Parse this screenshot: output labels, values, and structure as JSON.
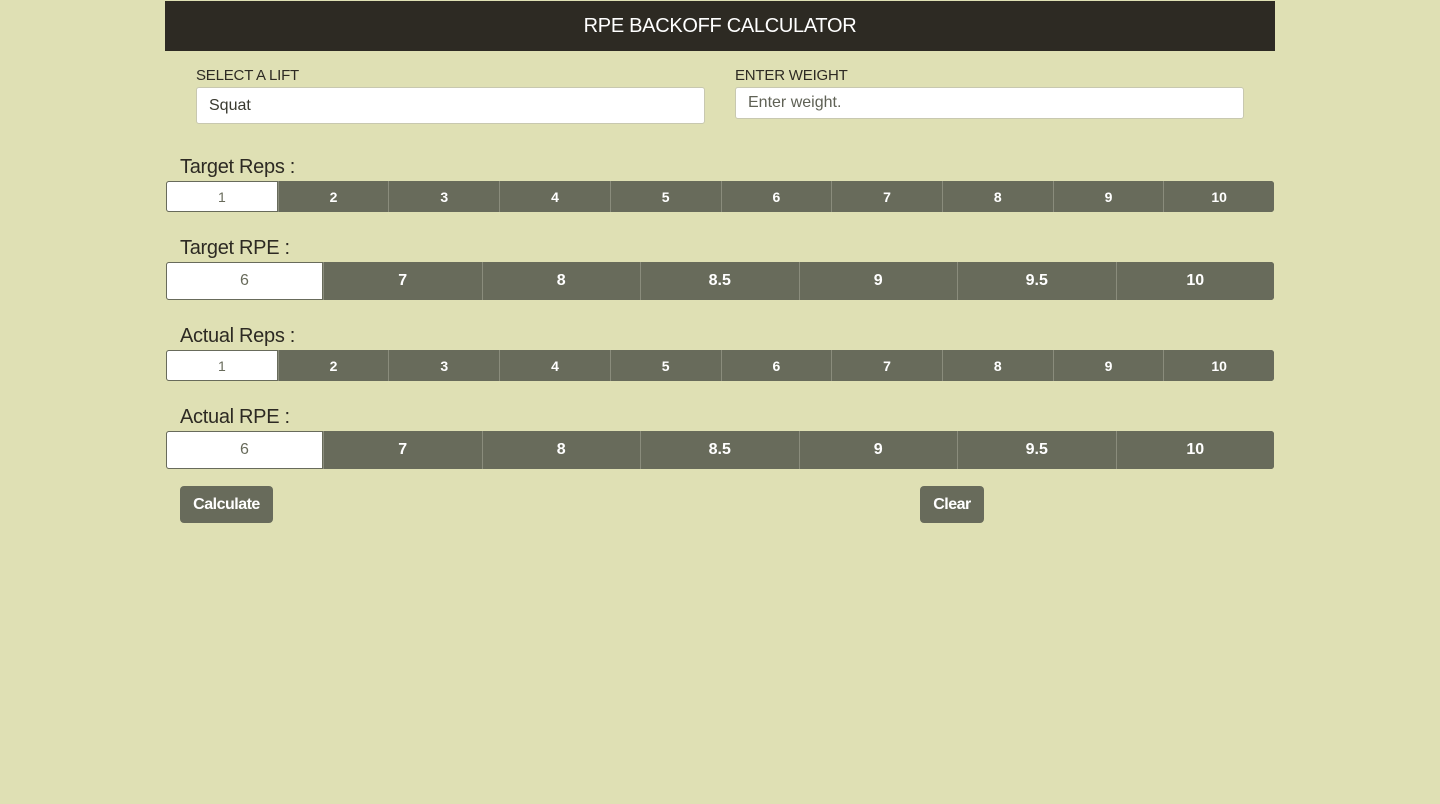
{
  "header": {
    "title": "RPE BACKOFF CALCULATOR"
  },
  "lift": {
    "label": "SELECT A LIFT",
    "value": "Squat"
  },
  "weight": {
    "label": "ENTER WEIGHT",
    "placeholder": "Enter weight."
  },
  "target_reps": {
    "label": "Target Reps :",
    "selected": "1",
    "options": [
      "1",
      "2",
      "3",
      "4",
      "5",
      "6",
      "7",
      "8",
      "9",
      "10"
    ]
  },
  "target_rpe": {
    "label": "Target RPE :",
    "selected": "6",
    "options": [
      "6",
      "7",
      "8",
      "8.5",
      "9",
      "9.5",
      "10"
    ]
  },
  "actual_reps": {
    "label": "Actual Reps :",
    "selected": "1",
    "options": [
      "1",
      "2",
      "3",
      "4",
      "5",
      "6",
      "7",
      "8",
      "9",
      "10"
    ]
  },
  "actual_rpe": {
    "label": "Actual RPE :",
    "selected": "6",
    "options": [
      "6",
      "7",
      "8",
      "8.5",
      "9",
      "9.5",
      "10"
    ]
  },
  "actions": {
    "calculate_label": "Calculate",
    "clear_label": "Clear"
  },
  "colors": {
    "background": "#dfe0b4",
    "header": "#2d2a23",
    "button": "#686b5b",
    "selected": "#ffffff"
  }
}
